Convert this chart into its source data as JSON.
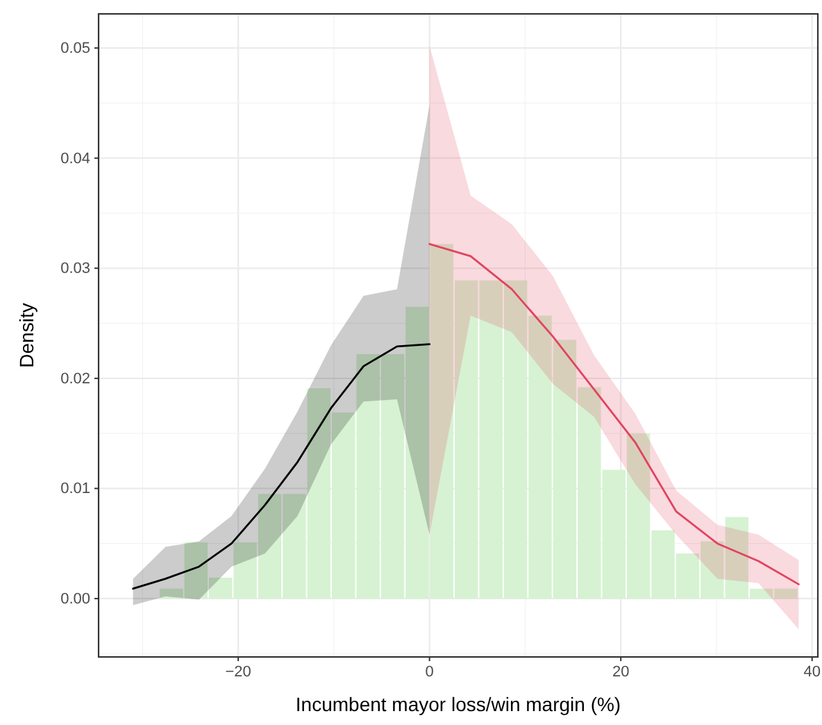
{
  "chart_data": {
    "type": "histogram",
    "xlabel": "Incumbent mayor loss/win margin (%)",
    "ylabel": "Density",
    "bins": [
      -28.27,
      -25.7,
      -23.13,
      -20.56,
      -17.99,
      -15.42,
      -12.85,
      -10.28,
      -7.71,
      -5.14,
      -2.57,
      0,
      2.57,
      5.14,
      7.71,
      10.28,
      12.85,
      15.42,
      17.99,
      20.56,
      23.13,
      25.7,
      28.27,
      30.84,
      33.41,
      35.98,
      38.55
    ],
    "values": [
      0.0009,
      0.0051,
      0.0019,
      0.0051,
      0.0095,
      0.0095,
      0.0191,
      0.0169,
      0.0222,
      0.0222,
      0.0265,
      0.0322,
      0.0289,
      0.0289,
      0.0289,
      0.0257,
      0.0235,
      0.0192,
      0.0117,
      0.015,
      0.0062,
      0.0041,
      0.0052,
      0.0074,
      0.0009,
      0.0009
    ],
    "color": "#d6f2d2",
    "series": [
      {
        "type": "line",
        "color": "#000000",
        "x": [
          -31.0,
          -27.6,
          -24.1,
          -20.7,
          -17.2,
          -13.8,
          -10.3,
          -6.9,
          -3.4,
          0
        ],
        "values": [
          0.0009,
          0.0018,
          0.0029,
          0.005,
          0.0085,
          0.0124,
          0.0173,
          0.0211,
          0.0229,
          0.0231
        ],
        "lower": [
          -0.0006,
          0.0002,
          -0.0001,
          0.0029,
          0.0041,
          0.0075,
          0.014,
          0.0179,
          0.0181,
          0.0058
        ],
        "upper": [
          0.0018,
          0.0047,
          0.0052,
          0.0075,
          0.0118,
          0.017,
          0.023,
          0.0275,
          0.0281,
          0.0448
        ]
      },
      {
        "type": "line",
        "color": "#e0445f",
        "x": [
          0,
          4.3,
          8.6,
          12.9,
          17.2,
          21.5,
          25.8,
          30.1,
          34.4,
          38.6
        ],
        "values": [
          0.0322,
          0.0311,
          0.0281,
          0.0238,
          0.019,
          0.0142,
          0.0079,
          0.005,
          0.0034,
          0.0013
        ],
        "lower": [
          0.0058,
          0.0257,
          0.0242,
          0.0195,
          0.0165,
          0.0104,
          0.0058,
          0.0018,
          0.0014,
          -0.0028
        ],
        "upper": [
          0.0502,
          0.0366,
          0.034,
          0.0293,
          0.0221,
          0.0168,
          0.0098,
          0.0067,
          0.0058,
          0.0035
        ]
      }
    ],
    "xlim": [
      -34.6,
      40.6
    ],
    "ylim": [
      -0.0053,
      0.0531
    ],
    "xticks": [
      {
        "value": -20,
        "label": "−20"
      },
      0,
      20,
      40
    ],
    "yticks": [
      {
        "value": 0,
        "label": "0.00"
      },
      {
        "value": 0.01,
        "label": "0.01"
      },
      {
        "value": 0.02,
        "label": "0.02"
      },
      {
        "value": 0.03,
        "label": "0.03"
      },
      {
        "value": 0.04,
        "label": "0.04"
      },
      {
        "value": 0.05,
        "label": "0.05"
      }
    ],
    "grid": true
  }
}
